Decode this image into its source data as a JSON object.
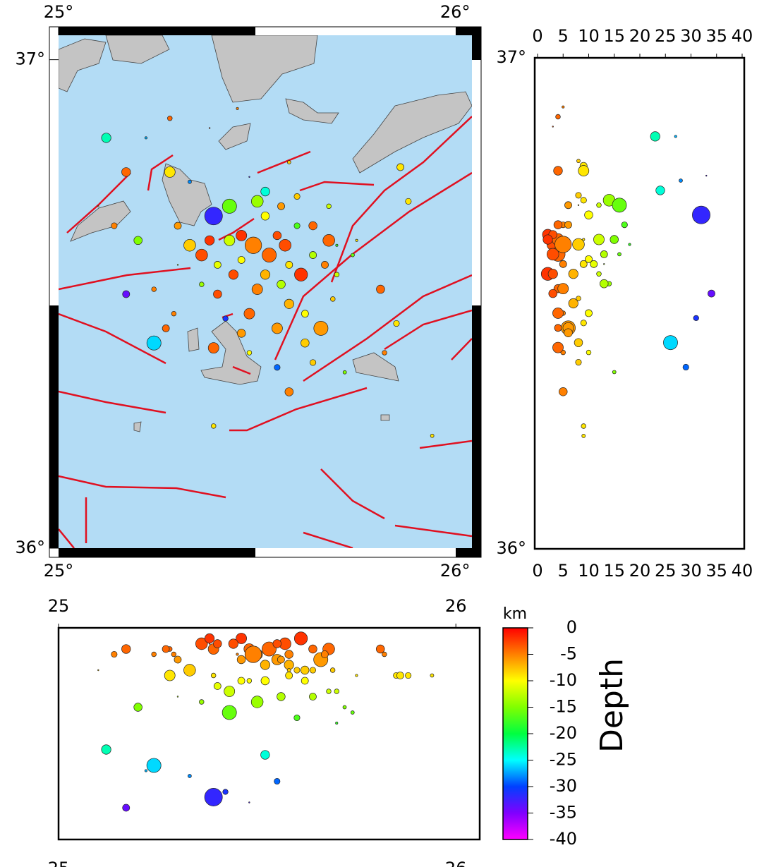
{
  "chart_data": [
    {
      "type": "map",
      "xlim": [
        25,
        26.04
      ],
      "ylim": [
        36,
        37.05
      ],
      "xticks": [
        {
          "value": 25,
          "label": "25°"
        },
        {
          "value": 26,
          "label": "26°"
        }
      ],
      "yticks": [
        {
          "value": 36,
          "label": "36°"
        },
        {
          "value": 37,
          "label": "37°"
        }
      ],
      "x": [
        25.12,
        25.22,
        25.28,
        25.17,
        25.33,
        25.52,
        25.39,
        25.17,
        25.24,
        25.55,
        25.48,
        25.42,
        25.88,
        25.85,
        25.81,
        25.82,
        25.58,
        25.72,
        25.39,
        25.94,
        25.3,
        25.2,
        25.1,
        25.14,
        25.24,
        25.29,
        25.39,
        25.27,
        25.3,
        25.57,
        25.61,
        25.66,
        25.53,
        25.46,
        25.44,
        25.5,
        25.58,
        25.55,
        25.62,
        25.64,
        25.68,
        25.7,
        25.74,
        25.36,
        25.4,
        25.48,
        25.52,
        25.56,
        25.6,
        25.5,
        25.43,
        25.64,
        25.68,
        25.36,
        25.46,
        25.52,
        25.58,
        25.62,
        25.46,
        25.43,
        25.55,
        25.33,
        25.4,
        25.56,
        25.6,
        25.69,
        25.49,
        25.38,
        25.67,
        25.48,
        25.7,
        25.75,
        25.86,
        25.45,
        25.38,
        25.58,
        25.64,
        25.28
      ],
      "y": [
        36.84,
        36.84,
        36.88,
        36.77,
        36.75,
        36.73,
        36.68,
        36.52,
        36.42,
        36.37,
        36.76,
        36.47,
        36.71,
        36.46,
        36.53,
        36.4,
        36.32,
        36.36,
        36.25,
        36.23,
        36.58,
        36.63,
        36.7,
        36.66,
        36.53,
        36.48,
        36.41,
        36.45,
        36.66,
        36.62,
        36.56,
        36.45,
        36.6,
        36.64,
        36.56,
        36.53,
        36.5,
        36.45,
        36.42,
        36.38,
        36.63,
        36.56,
        36.6,
        36.6,
        36.52,
        36.48,
        36.68,
        36.7,
        36.72,
        36.71,
        36.7,
        36.66,
        36.7,
        36.54,
        36.59,
        36.56,
        36.58,
        36.48,
        36.44,
        36.63,
        36.64,
        36.62,
        36.58,
        36.54,
        36.66,
        36.51,
        36.62,
        36.63,
        36.58,
        36.4,
        36.62,
        36.63,
        36.78,
        36.9,
        36.86,
        36.79,
        36.6,
        36.77
      ],
      "depth": [
        23,
        27,
        4,
        4,
        28,
        24,
        32,
        34,
        26,
        29,
        33,
        31,
        9,
        9,
        4,
        5,
        5,
        15,
        9,
        9,
        13,
        15,
        8,
        5,
        5,
        5,
        4,
        4,
        6,
        3,
        2,
        6,
        4,
        2,
        3,
        5,
        7,
        6,
        8,
        8,
        4,
        12,
        16,
        3,
        3,
        4,
        10,
        6,
        8,
        14,
        16,
        4,
        12,
        14,
        10,
        7,
        9,
        10,
        6,
        12,
        3,
        8,
        11,
        13,
        17,
        8,
        5,
        2,
        5,
        10,
        18,
        9,
        9,
        5,
        3,
        8,
        13,
        9
      ],
      "magnitude": [
        3.4,
        2.2,
        2.6,
        3.3,
        2.4,
        3.3,
        4.8,
        3.0,
        4.2,
        2.8,
        2.0,
        2.7,
        2.8,
        2.8,
        3.2,
        2.6,
        3.2,
        2.4,
        2.6,
        2.4,
        2.0,
        3.2,
        2.0,
        2.8,
        2.6,
        2.6,
        3.6,
        3.0,
        3.0,
        3.8,
        4.0,
        4.2,
        4.2,
        3.6,
        3.4,
        3.6,
        3.4,
        3.6,
        3.2,
        2.8,
        3.8,
        2.6,
        2.4,
        3.8,
        3.2,
        3.6,
        3.2,
        3.0,
        2.8,
        3.8,
        4.2,
        3.2,
        2.6,
        2.6,
        3.0,
        3.4,
        3.0,
        3.0,
        3.2,
        3.6,
        3.2,
        3.8,
        3.0,
        3.2,
        2.8,
        2.6,
        4.6,
        3.4,
        3.0,
        2.6,
        2.2,
        2.2,
        3.0,
        2.2,
        2.0,
        2.4,
        3.0,
        3.6
      ]
    },
    {
      "type": "depth-latitude",
      "xlim": [
        0,
        40
      ],
      "xticks": [
        0,
        5,
        10,
        15,
        20,
        25,
        30,
        35,
        40
      ],
      "ylim": [
        36,
        37
      ],
      "yticks": [
        {
          "value": 36,
          "label": "36°"
        },
        {
          "value": 37,
          "label": "37°"
        }
      ]
    },
    {
      "type": "longitude-depth",
      "xlim": [
        25,
        26.06
      ],
      "xticks": [
        25,
        26
      ],
      "ylim": [
        40,
        0
      ]
    },
    {
      "type": "colorbar",
      "title": "Depth",
      "unit": "km",
      "ylim": [
        -40,
        0
      ],
      "yticks": [
        0,
        -5,
        -10,
        -15,
        -20,
        -25,
        -30,
        -35,
        -40
      ],
      "colormap": [
        "#ff0000",
        "#ff8000",
        "#ffff00",
        "#80ff00",
        "#00ff40",
        "#00ffff",
        "#0040ff",
        "#8000ff",
        "#ff00ff"
      ]
    }
  ]
}
